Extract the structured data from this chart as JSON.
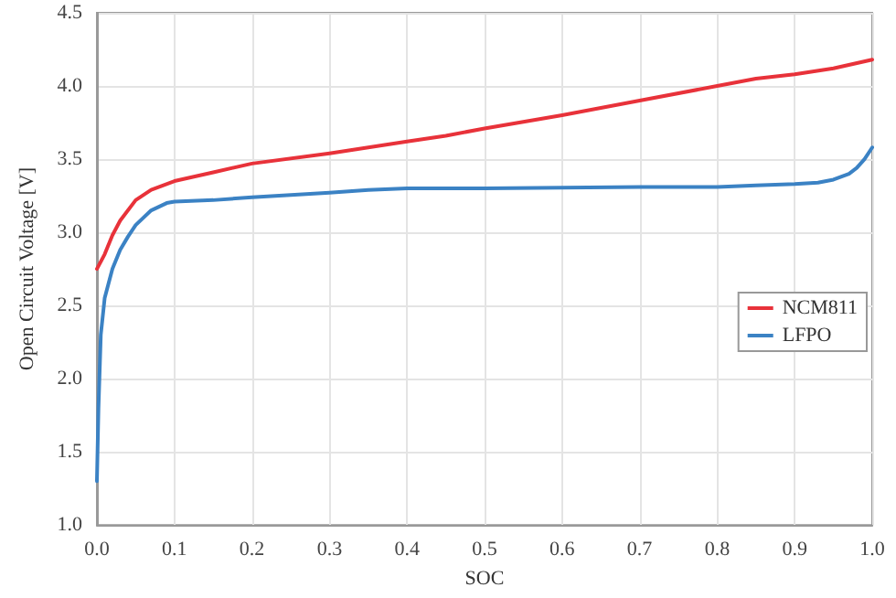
{
  "chart_data": {
    "type": "line",
    "xlabel": "SOC",
    "ylabel": "Open Circuit Voltage [V]",
    "xlim": [
      0,
      1
    ],
    "xticks": [
      {
        "value": 0,
        "label": "0.0"
      },
      0.1,
      0.2,
      0.3,
      0.4,
      0.5,
      0.6,
      0.7,
      0.8,
      0.9,
      {
        "value": 1,
        "label": "1.0"
      }
    ],
    "ylim": [
      1,
      4.5
    ],
    "yticks": [
      {
        "value": 1,
        "label": "1.0"
      },
      1.5,
      {
        "value": 2,
        "label": "2.0"
      },
      2.5,
      {
        "value": 3,
        "label": "3.0"
      },
      3.5,
      {
        "value": 4,
        "label": "4.0"
      },
      4.5
    ],
    "grid": true,
    "legend": "right",
    "marker": "none",
    "line_style": "solid",
    "series": [
      {
        "name": "NCM811",
        "color": "#e8323a",
        "x": [
          0,
          0.01,
          0.02,
          0.03,
          0.05,
          0.07,
          0.1,
          0.15,
          0.2,
          0.3,
          0.4,
          0.45,
          0.5,
          0.6,
          0.7,
          0.8,
          0.85,
          0.9,
          0.95,
          1
        ],
        "values": [
          2.75,
          2.85,
          2.98,
          3.08,
          3.22,
          3.29,
          3.35,
          3.41,
          3.47,
          3.54,
          3.62,
          3.66,
          3.71,
          3.8,
          3.9,
          4.0,
          4.05,
          4.08,
          4.12,
          4.18
        ]
      },
      {
        "name": "LFPO",
        "color": "#3b82c4",
        "x": [
          0,
          0.002,
          0.005,
          0.01,
          0.02,
          0.03,
          0.04,
          0.05,
          0.07,
          0.09,
          0.1,
          0.15,
          0.2,
          0.3,
          0.35,
          0.4,
          0.5,
          0.7,
          0.8,
          0.85,
          0.9,
          0.93,
          0.95,
          0.97,
          0.98,
          0.99,
          1
        ],
        "values": [
          1.3,
          1.8,
          2.3,
          2.55,
          2.75,
          2.88,
          2.97,
          3.05,
          3.15,
          3.2,
          3.21,
          3.22,
          3.24,
          3.27,
          3.29,
          3.3,
          3.3,
          3.31,
          3.31,
          3.32,
          3.33,
          3.34,
          3.36,
          3.4,
          3.44,
          3.5,
          3.58
        ]
      }
    ]
  }
}
